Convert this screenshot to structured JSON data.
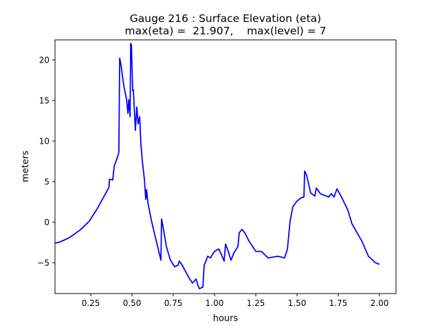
{
  "chart_data": {
    "type": "line",
    "title": "Gauge 216 : Surface Elevation (eta)",
    "subtitle": "max(eta) =  21.907,    max(level) = 7",
    "xlabel": "hours",
    "ylabel": "meters",
    "xlim": [
      0.033,
      2.1
    ],
    "ylim": [
      -8.8,
      22.46
    ],
    "xticks": [
      0.25,
      0.5,
      0.75,
      1.0,
      1.25,
      1.5,
      1.75,
      2.0
    ],
    "xtick_labels": [
      "0.25",
      "0.50",
      "0.75",
      "1.00",
      "1.25",
      "1.50",
      "1.75",
      "2.00"
    ],
    "yticks": [
      -5,
      0,
      5,
      10,
      15,
      20
    ],
    "ytick_labels": [
      "−5",
      "0",
      "5",
      "10",
      "15",
      "20"
    ],
    "grid": false,
    "series": [
      {
        "name": "eta",
        "color": "#0000ff",
        "x": [
          0.033,
          0.067,
          0.117,
          0.19,
          0.24,
          0.29,
          0.36,
          0.363,
          0.383,
          0.392,
          0.417,
          0.42,
          0.425,
          0.433,
          0.442,
          0.45,
          0.467,
          0.475,
          0.48,
          0.488,
          0.492,
          0.496,
          0.504,
          0.508,
          0.52,
          0.529,
          0.537,
          0.546,
          0.554,
          0.5625,
          0.575,
          0.583,
          0.588,
          0.596,
          0.617,
          0.642,
          0.667,
          0.675,
          0.679,
          0.688,
          0.708,
          0.733,
          0.758,
          0.779,
          0.787,
          0.804,
          0.825,
          0.846,
          0.867,
          0.888,
          0.9,
          0.908,
          0.929,
          0.9375,
          0.95,
          0.958,
          0.975,
          1.0,
          1.025,
          1.042,
          1.058,
          1.067,
          1.083,
          1.1,
          1.117,
          1.142,
          1.15,
          1.167,
          1.183,
          1.208,
          1.25,
          1.283,
          1.325,
          1.383,
          1.425,
          1.442,
          1.458,
          1.475,
          1.5,
          1.525,
          1.542,
          1.546,
          1.558,
          1.583,
          1.608,
          1.617,
          1.642,
          1.692,
          1.708,
          1.725,
          1.742,
          1.767,
          1.808,
          1.833,
          1.892,
          1.933,
          1.975,
          2.0
        ],
        "y": [
          -2.6,
          -2.4,
          -1.95,
          -0.9,
          0.1,
          1.7,
          4.3,
          5.3,
          5.2,
          6.9,
          8.3,
          8.7,
          20.2,
          19.4,
          18,
          16.8,
          15.1,
          13.4,
          15.1,
          13,
          22,
          21.9,
          16.2,
          16.3,
          11.3,
          14.2,
          12.1,
          13,
          9.6,
          7.5,
          5.2,
          2.8,
          4,
          2.4,
          0.25,
          -1.9,
          -4,
          -4.7,
          0.4,
          -0.6,
          -3,
          -4.7,
          -5.5,
          -5.3,
          -4.8,
          -5.3,
          -6.1,
          -6.9,
          -7.5,
          -7,
          -7.8,
          -8.2,
          -8,
          -5.3,
          -4.7,
          -4.2,
          -4.4,
          -3.6,
          -3.3,
          -4,
          -4.8,
          -2.7,
          -3.6,
          -4.7,
          -3.8,
          -3,
          -1.3,
          -0.9,
          -1.3,
          -2.3,
          -3.6,
          -3.6,
          -4.4,
          -4.2,
          -4.4,
          -3.3,
          0.1,
          1.9,
          2.6,
          3,
          3.1,
          6.3,
          5.8,
          3.6,
          3.2,
          4.2,
          3.5,
          3.1,
          3.5,
          3.1,
          4.1,
          3.2,
          1.5,
          -0.2,
          -2.3,
          -4.2,
          -5,
          -5.2
        ]
      }
    ]
  }
}
